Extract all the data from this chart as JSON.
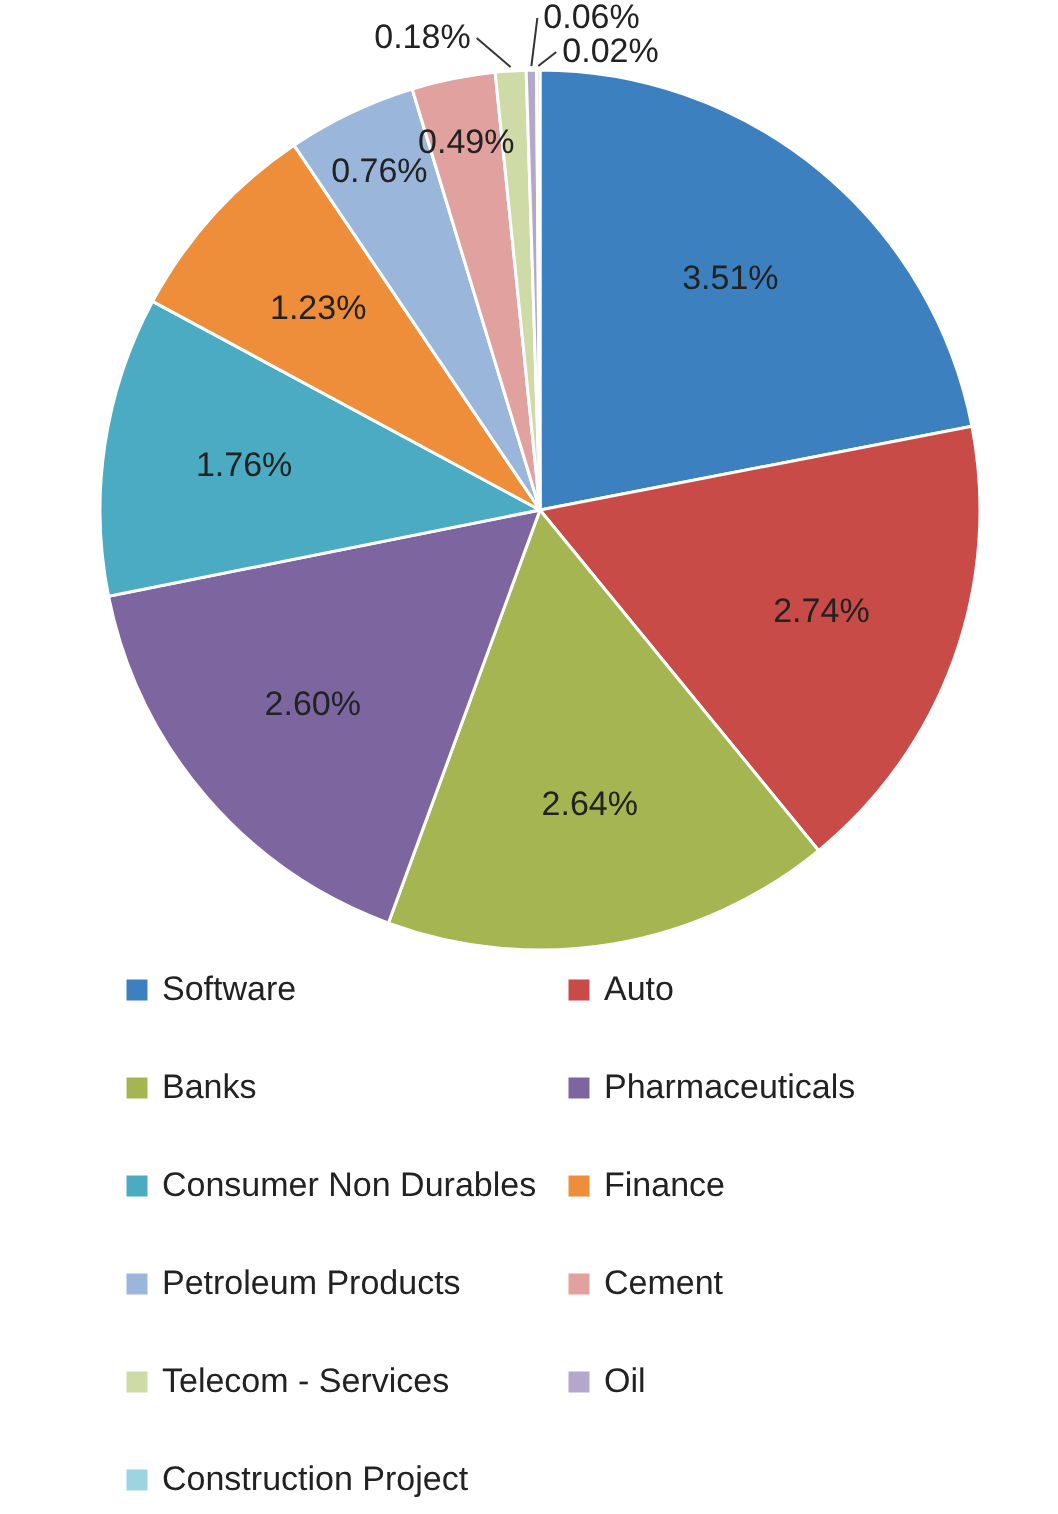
{
  "chart_data": {
    "type": "pie",
    "categories": [
      "Software",
      "Auto",
      "Banks",
      "Pharmaceuticals",
      "Consumer Non Durables",
      "Finance",
      "Petroleum Products",
      "Cement",
      "Telecom - Services",
      "Oil",
      "Construction Project"
    ],
    "values": [
      3.51,
      2.74,
      2.64,
      2.6,
      1.76,
      1.23,
      0.76,
      0.49,
      0.18,
      0.06,
      0.02
    ],
    "value_labels": [
      "3.51%",
      "2.74%",
      "2.64%",
      "2.60%",
      "1.76%",
      "1.23%",
      "0.76%",
      "0.49%",
      "0.18%",
      "0.06%",
      "0.02%"
    ],
    "colors": [
      "#3d80bf",
      "#c84b48",
      "#a4b552",
      "#7d65a0",
      "#4aabc2",
      "#ef8e3a",
      "#9bb6db",
      "#e0a19f",
      "#cedba6",
      "#b4a7cc",
      "#9ed3e0"
    ],
    "legend": "bottom"
  }
}
